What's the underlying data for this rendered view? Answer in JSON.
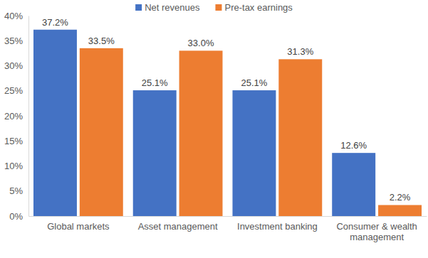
{
  "chart_data": {
    "type": "bar",
    "categories": [
      "Global markets",
      "Asset management",
      "Investment banking",
      "Consumer & wealth management"
    ],
    "series": [
      {
        "name": "Net revenues",
        "color": "#4472c4",
        "values": [
          37.2,
          25.1,
          25.1,
          12.6
        ],
        "value_labels": [
          "37.2%",
          "25.1%",
          "25.1%",
          "12.6%"
        ]
      },
      {
        "name": "Pre-tax earnings",
        "color": "#ed7d31",
        "values": [
          33.5,
          33.0,
          31.3,
          2.2
        ],
        "value_labels": [
          "33.5%",
          "33.0%",
          "31.3%",
          "2.2%"
        ]
      }
    ],
    "ylim": [
      0,
      40
    ],
    "yticks": [
      {
        "value": 0,
        "label": "0%"
      },
      {
        "value": 5,
        "label": "5%"
      },
      {
        "value": 10,
        "label": "10%"
      },
      {
        "value": 15,
        "label": "15%"
      },
      {
        "value": 20,
        "label": "20%"
      },
      {
        "value": 25,
        "label": "25%"
      },
      {
        "value": 30,
        "label": "30%"
      },
      {
        "value": 35,
        "label": "35%"
      },
      {
        "value": 40,
        "label": "40%"
      }
    ],
    "grid": false,
    "legend": "top",
    "data_labels": true
  }
}
